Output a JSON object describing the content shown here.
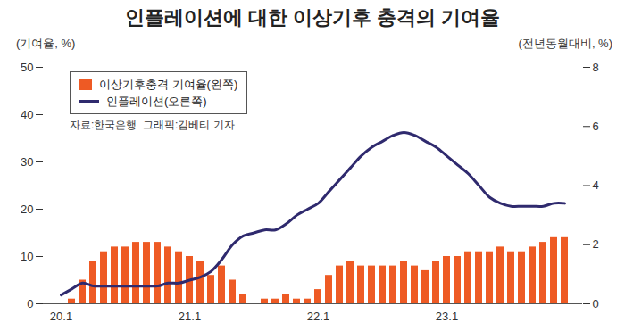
{
  "chart_data": {
    "type": "combo",
    "title": "인플레이션에 대한 이상기후 충격의 기여율",
    "ylabel": "(기여율, %)",
    "y2label": "(전년동월대비, %)",
    "source": "자료:한국은행  그래픽:김베티 기자",
    "categories": [
      "20.1",
      null,
      null,
      null,
      null,
      null,
      null,
      null,
      null,
      null,
      null,
      null,
      "21.1",
      null,
      null,
      null,
      null,
      null,
      null,
      null,
      null,
      null,
      null,
      null,
      "22.1",
      null,
      null,
      null,
      null,
      null,
      null,
      null,
      null,
      null,
      null,
      null,
      "23.1",
      null,
      null,
      null,
      null,
      null,
      null,
      null,
      null,
      null,
      null,
      null
    ],
    "series": [
      {
        "name": "이상기후충격 기여율(왼쪽)",
        "type": "bar",
        "color": "#ee5a24",
        "values": [
          0,
          1,
          5,
          9,
          11,
          12,
          12,
          13,
          13,
          13,
          12,
          11,
          10,
          9,
          6,
          8,
          5,
          2,
          0,
          1,
          1,
          2,
          1,
          1,
          3,
          6,
          8,
          9,
          8,
          8,
          8,
          8,
          9,
          8,
          7,
          9,
          10,
          10,
          11,
          11,
          11,
          12,
          11,
          11,
          12,
          13,
          14,
          14
        ]
      },
      {
        "name": "인플레이션(오른쪽)",
        "type": "line",
        "color": "#2f2a6e",
        "axis": "y2",
        "values": [
          0.3,
          0.5,
          0.7,
          0.6,
          0.6,
          0.6,
          0.6,
          0.6,
          0.6,
          0.6,
          0.7,
          0.7,
          0.8,
          0.9,
          1.1,
          1.5,
          2.0,
          2.3,
          2.4,
          2.5,
          2.5,
          2.7,
          3.0,
          3.2,
          3.4,
          3.8,
          4.2,
          4.6,
          5.0,
          5.3,
          5.5,
          5.7,
          5.8,
          5.7,
          5.5,
          5.3,
          5.0,
          4.7,
          4.4,
          4.0,
          3.6,
          3.4,
          3.3,
          3.3,
          3.3,
          3.3,
          3.4,
          3.4
        ]
      }
    ],
    "ylim": [
      0,
      50
    ],
    "yticks": [
      0,
      10,
      20,
      30,
      40,
      50
    ],
    "y2lim": [
      0,
      8
    ],
    "y2ticks": [
      0,
      2,
      4,
      6,
      8
    ],
    "legend": "top-left",
    "grid": false
  }
}
